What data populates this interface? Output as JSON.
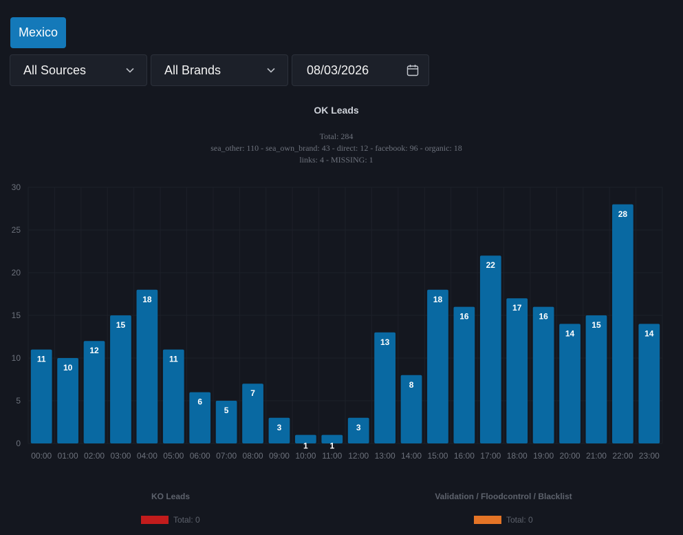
{
  "filters": {
    "country_label": "Mexico",
    "source_label": "All Sources",
    "brand_label": "All Brands",
    "date_value": "08/03/2026"
  },
  "icons": {
    "source_dropdown": "chevron-down-icon",
    "brand_dropdown": "chevron-down-icon",
    "date_picker": "calendar-icon"
  },
  "colors": {
    "background": "#14171f",
    "accent": "#1479b9",
    "bar": "#0969a2",
    "ko": "#c21c1c",
    "validation": "#e47426"
  },
  "chart_data": {
    "type": "bar",
    "title": "OK Leads",
    "subtitle_lines": [
      "Total: 284",
      "sea_other: 110 - sea_own_brand: 43 - direct: 12 - facebook: 96 - organic: 18",
      "links: 4 - MISSING: 1"
    ],
    "categories": [
      "00:00",
      "01:00",
      "02:00",
      "03:00",
      "04:00",
      "05:00",
      "06:00",
      "07:00",
      "08:00",
      "09:00",
      "10:00",
      "11:00",
      "12:00",
      "13:00",
      "14:00",
      "15:00",
      "16:00",
      "17:00",
      "18:00",
      "19:00",
      "20:00",
      "21:00",
      "22:00",
      "23:00"
    ],
    "values": [
      11,
      10,
      12,
      15,
      18,
      11,
      6,
      5,
      7,
      3,
      1,
      1,
      3,
      13,
      8,
      18,
      16,
      22,
      17,
      16,
      14,
      15,
      28,
      14
    ],
    "ylim": [
      0,
      30
    ],
    "yticks": [
      0,
      5,
      10,
      15,
      20,
      25,
      30
    ],
    "grid": true,
    "data_labels": true,
    "xlabel": "",
    "ylabel": ""
  },
  "ko_leads": {
    "title": "KO Leads",
    "legend_text": "Total: 0"
  },
  "validation": {
    "title": "Validation / Floodcontrol / Blacklist",
    "legend_text": "Total: 0"
  }
}
